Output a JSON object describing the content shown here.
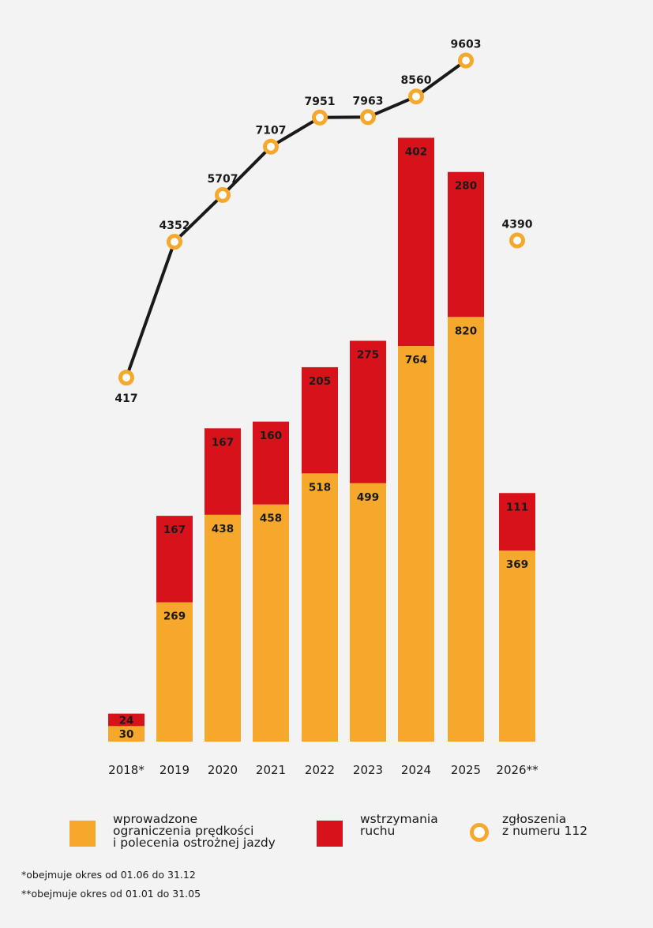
{
  "chart_data": {
    "type": "bar",
    "stacked": true,
    "categories": [
      "2018*",
      "2019",
      "2020",
      "2021",
      "2022",
      "2023",
      "2024",
      "2025",
      "2026**"
    ],
    "series": [
      {
        "name": "wprowadzone\nograniczenia prędkości\ni polecenia ostrożnej jazdy",
        "color": "#f5a82b",
        "values": [
          30,
          269,
          438,
          458,
          518,
          499,
          764,
          820,
          369
        ]
      },
      {
        "name": "wstrzymania\nruchu",
        "color": "#d7121a",
        "values": [
          24,
          167,
          167,
          160,
          205,
          275,
          402,
          280,
          111
        ]
      }
    ],
    "line_series": {
      "name": "zgłoszenia\nz numeru 112",
      "color": "#1a1a1a",
      "marker_color": "#f5a82b",
      "values": [
        417,
        4352,
        5707,
        7107,
        7951,
        7963,
        8560,
        9603,
        4390
      ],
      "connected_points": 8
    },
    "legend_placement": "bottom",
    "grid": false
  },
  "footnotes": [
    "*obejmuje okres od 01.06 do 31.12",
    "**obejmuje okres od 01.01 do 31.05"
  ]
}
